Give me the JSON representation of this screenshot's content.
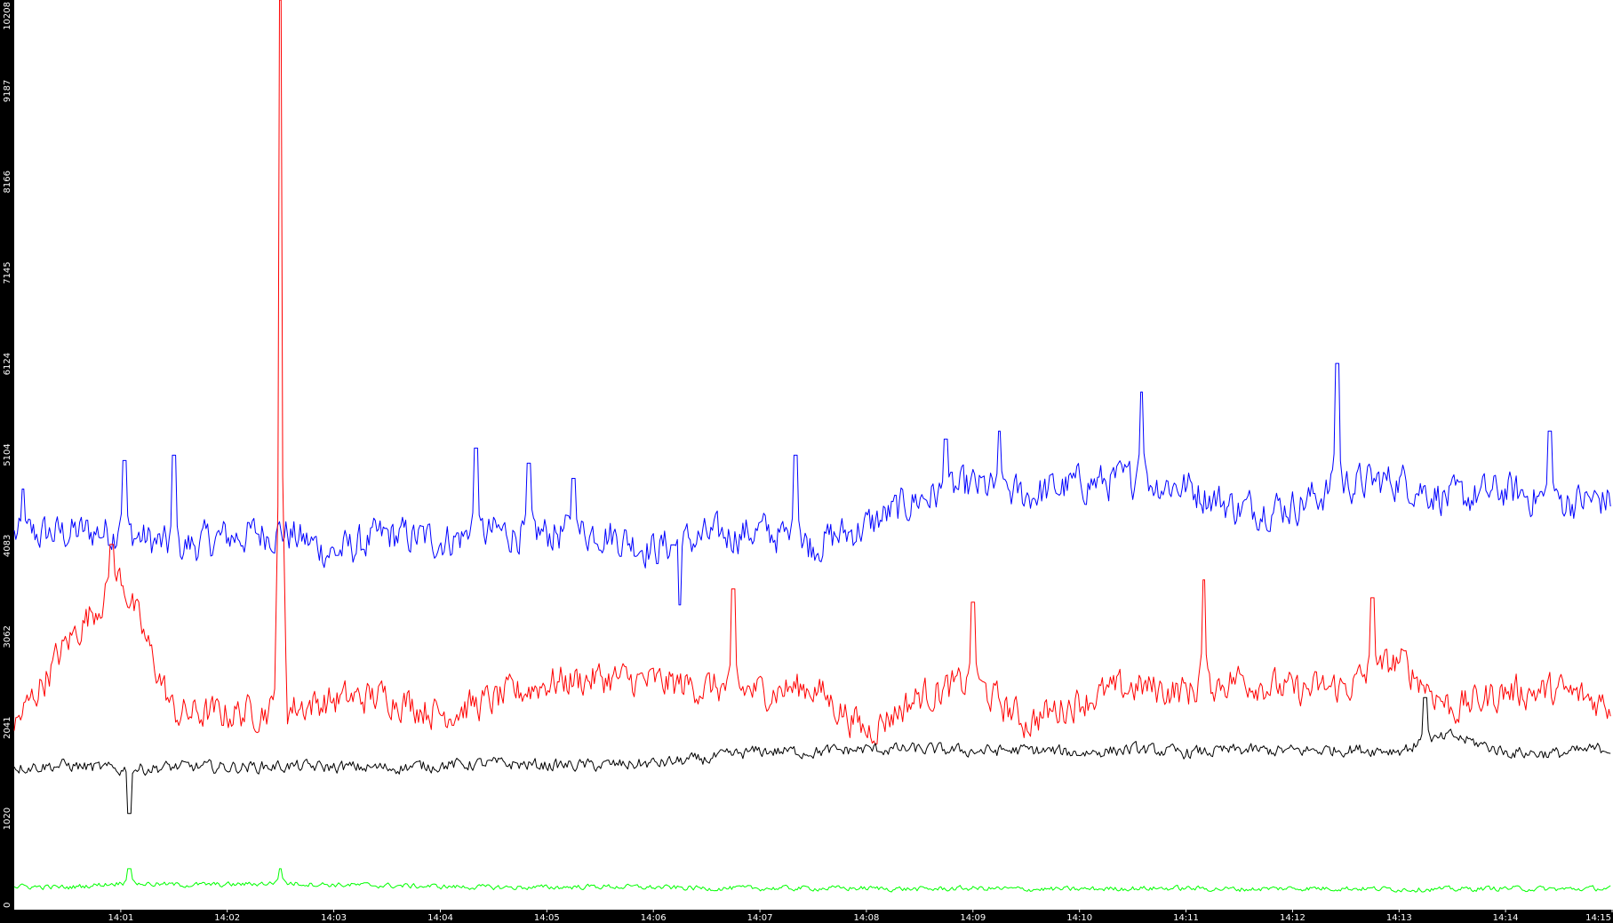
{
  "chart_data": {
    "type": "line",
    "title": "",
    "xlabel": "",
    "ylabel": "",
    "background": "#ffffff",
    "axis_background": "#000000",
    "axis_text_color": "#ffffff",
    "grid": false,
    "legend": "none",
    "ylim": [
      0,
      10208
    ],
    "xlim": [
      "14:00:00",
      "14:15:00"
    ],
    "y_ticks": [
      "0",
      "1020",
      "2041",
      "3062",
      "4083",
      "5104",
      "6124",
      "7145",
      "8166",
      "9187",
      "10208"
    ],
    "x_ticks": [
      "14:01",
      "14:02",
      "14:03",
      "14:04",
      "14:05",
      "14:06",
      "14:07",
      "14:08",
      "14:09",
      "14:10",
      "14:11",
      "14:12",
      "14:13",
      "14:14",
      "14:15"
    ],
    "series": [
      {
        "color": "#0000ff",
        "x": [
          "14:00:00",
          "14:00:30",
          "14:01:00",
          "14:01:30",
          "14:02:00",
          "14:02:30",
          "14:03:00",
          "14:03:30",
          "14:04:00",
          "14:04:30",
          "14:05:00",
          "14:05:30",
          "14:06:00",
          "14:06:30",
          "14:07:00",
          "14:07:30",
          "14:08:00",
          "14:08:30",
          "14:09:00",
          "14:09:30",
          "14:10:00",
          "14:10:30",
          "14:11:00",
          "14:11:30",
          "14:12:00",
          "14:12:30",
          "14:13:00",
          "14:13:30",
          "14:14:00",
          "14:14:30",
          "14:15:00"
        ],
        "values": [
          4200,
          4230,
          4250,
          4050,
          4180,
          4250,
          4000,
          4200,
          4150,
          4230,
          4220,
          4250,
          4050,
          4180,
          4250,
          4100,
          4300,
          4620,
          4750,
          4650,
          4780,
          4820,
          4750,
          4500,
          4530,
          4780,
          4820,
          4600,
          4700,
          4580,
          4600
        ],
        "spikes": [
          {
            "x": "14:00:05",
            "value": 4720
          },
          {
            "x": "14:01:02",
            "value": 5040
          },
          {
            "x": "14:01:30",
            "value": 5100
          },
          {
            "x": "14:04:20",
            "value": 5180
          },
          {
            "x": "14:04:50",
            "value": 5010
          },
          {
            "x": "14:05:15",
            "value": 4840
          },
          {
            "x": "14:06:15",
            "value": 3420
          },
          {
            "x": "14:07:20",
            "value": 5100
          },
          {
            "x": "14:08:45",
            "value": 5280
          },
          {
            "x": "14:09:15",
            "value": 5370
          },
          {
            "x": "14:10:35",
            "value": 5810
          },
          {
            "x": "14:12:25",
            "value": 6130
          },
          {
            "x": "14:14:25",
            "value": 5370
          }
        ]
      },
      {
        "color": "#ff0000",
        "x": [
          "14:00:00",
          "14:00:30",
          "14:01:00",
          "14:01:30",
          "14:02:00",
          "14:02:30",
          "14:03:00",
          "14:03:30",
          "14:04:00",
          "14:04:30",
          "14:05:00",
          "14:05:30",
          "14:06:00",
          "14:06:30",
          "14:07:00",
          "14:07:30",
          "14:08:00",
          "14:08:30",
          "14:09:00",
          "14:09:30",
          "14:10:00",
          "14:10:30",
          "14:11:00",
          "14:11:30",
          "14:12:00",
          "14:12:30",
          "14:13:00",
          "14:13:30",
          "14:14:00",
          "14:14:30",
          "14:15:00"
        ],
        "values": [
          2050,
          3000,
          3750,
          2200,
          2200,
          2250,
          2350,
          2400,
          2200,
          2350,
          2550,
          2600,
          2550,
          2500,
          2450,
          2500,
          2000,
          2400,
          2550,
          2100,
          2350,
          2500,
          2450,
          2600,
          2450,
          2500,
          2800,
          2250,
          2450,
          2450,
          2300
        ],
        "spikes": [
          {
            "x": "14:00:55",
            "value": 4100
          },
          {
            "x": "14:02:30",
            "value": 10208
          },
          {
            "x": "14:06:45",
            "value": 3600
          },
          {
            "x": "14:09:00",
            "value": 3450
          },
          {
            "x": "14:11:10",
            "value": 3700
          },
          {
            "x": "14:12:45",
            "value": 3500
          }
        ]
      },
      {
        "color": "#000000",
        "x": [
          "14:00:00",
          "14:00:30",
          "14:01:00",
          "14:01:30",
          "14:02:00",
          "14:02:30",
          "14:03:00",
          "14:03:30",
          "14:04:00",
          "14:04:30",
          "14:05:00",
          "14:05:30",
          "14:06:00",
          "14:06:30",
          "14:07:00",
          "14:07:30",
          "14:08:00",
          "14:08:30",
          "14:09:00",
          "14:09:30",
          "14:10:00",
          "14:10:30",
          "14:11:00",
          "14:11:30",
          "14:12:00",
          "14:12:30",
          "14:13:00",
          "14:13:30",
          "14:14:00",
          "14:14:30",
          "14:15:00"
        ],
        "values": [
          1600,
          1620,
          1570,
          1600,
          1600,
          1610,
          1600,
          1590,
          1620,
          1640,
          1620,
          1620,
          1640,
          1690,
          1780,
          1770,
          1800,
          1800,
          1780,
          1790,
          1760,
          1800,
          1760,
          1790,
          1780,
          1800,
          1790,
          1950,
          1770,
          1750,
          1820
        ],
        "spikes": [
          {
            "x": "14:01:05",
            "value": 1080
          },
          {
            "x": "14:13:15",
            "value": 2380
          }
        ]
      },
      {
        "color": "#00ff00",
        "x": [
          "14:00:00",
          "14:00:30",
          "14:01:00",
          "14:01:30",
          "14:02:00",
          "14:02:30",
          "14:03:00",
          "14:03:30",
          "14:04:00",
          "14:04:30",
          "14:05:00",
          "14:05:30",
          "14:06:00",
          "14:06:30",
          "14:07:00",
          "14:07:30",
          "14:08:00",
          "14:08:30",
          "14:09:00",
          "14:09:30",
          "14:10:00",
          "14:10:30",
          "14:11:00",
          "14:11:30",
          "14:12:00",
          "14:12:30",
          "14:13:00",
          "14:13:30",
          "14:14:00",
          "14:14:30",
          "14:15:00"
        ],
        "values": [
          260,
          250,
          300,
          280,
          280,
          300,
          280,
          270,
          260,
          250,
          250,
          260,
          250,
          240,
          240,
          240,
          240,
          230,
          240,
          230,
          230,
          240,
          240,
          230,
          240,
          240,
          230,
          230,
          240,
          230,
          240
        ],
        "spikes": [
          {
            "x": "14:01:05",
            "value": 460
          },
          {
            "x": "14:02:30",
            "value": 460
          }
        ]
      }
    ]
  }
}
